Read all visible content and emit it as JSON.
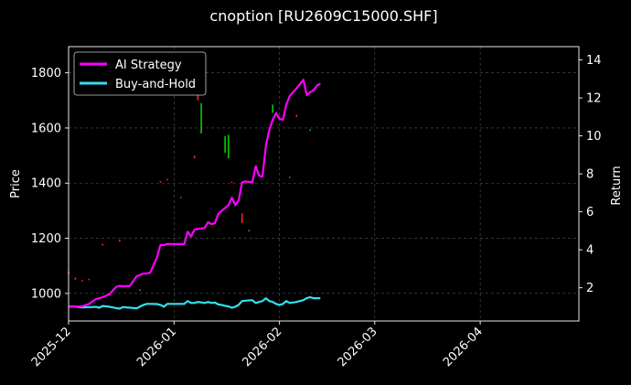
{
  "chart_data": {
    "type": "line",
    "title": "cnoption [RU2609C15000.SHF]",
    "left_axis": {
      "label": "Price",
      "ylim": [
        900,
        1895
      ],
      "ticks": [
        1000,
        1200,
        1400,
        1600,
        1800
      ]
    },
    "right_axis": {
      "label": "Return",
      "ylim": [
        0.25,
        14.7
      ],
      "ticks": [
        2,
        4,
        6,
        8,
        10,
        12,
        14
      ]
    },
    "x_axis": {
      "xlim": [
        "2025-12-01",
        "2026-04-30"
      ],
      "ticks": [
        "2025-12",
        "2026-01",
        "2026-02",
        "2026-03",
        "2026-04"
      ],
      "tick_dates": [
        "2025-12-01",
        "2026-01-01",
        "2026-02-01",
        "2026-03-01",
        "2026-04-01"
      ]
    },
    "grid": true,
    "legend_position": "top-left",
    "colors": {
      "ai": "#ff00ff",
      "bh": "#33e0f0",
      "up": "#00cc00",
      "down": "#ff2020",
      "background": "#000000",
      "grid": "#555555"
    },
    "series": [
      {
        "name": "AI Strategy",
        "axis": "right",
        "x": [
          "2025-12-01",
          "2025-12-03",
          "2025-12-05",
          "2025-12-07",
          "2025-12-09",
          "2025-12-10",
          "2025-12-11",
          "2025-12-13",
          "2025-12-15",
          "2025-12-16",
          "2025-12-17",
          "2025-12-19",
          "2025-12-21",
          "2025-12-23",
          "2025-12-24",
          "2025-12-25",
          "2025-12-27",
          "2025-12-28",
          "2025-12-29",
          "2025-12-30",
          "2025-12-31",
          "2026-01-01",
          "2026-01-04",
          "2026-01-05",
          "2026-01-06",
          "2026-01-07",
          "2026-01-08",
          "2026-01-10",
          "2026-01-11",
          "2026-01-12",
          "2026-01-13",
          "2026-01-14",
          "2026-01-15",
          "2026-01-16",
          "2026-01-17",
          "2026-01-18",
          "2026-01-19",
          "2026-01-20",
          "2026-01-21",
          "2026-01-22",
          "2026-01-24",
          "2026-01-25",
          "2026-01-26",
          "2026-01-27",
          "2026-01-28",
          "2026-01-29",
          "2026-01-30",
          "2026-01-31",
          "2026-02-01",
          "2026-02-02",
          "2026-02-03",
          "2026-02-04",
          "2026-02-06",
          "2026-02-08",
          "2026-02-09",
          "2026-02-10",
          "2026-02-11",
          "2026-02-12",
          "2026-02-13"
        ],
        "y": [
          1.0,
          1.0,
          1.02,
          1.15,
          1.4,
          1.45,
          1.5,
          1.65,
          2.05,
          2.1,
          2.08,
          2.1,
          2.6,
          2.75,
          2.75,
          2.8,
          3.6,
          4.25,
          4.25,
          4.3,
          4.3,
          4.3,
          4.3,
          4.95,
          4.7,
          5.05,
          5.1,
          5.15,
          5.45,
          5.35,
          5.4,
          5.9,
          6.05,
          6.2,
          6.35,
          6.75,
          6.35,
          6.6,
          7.55,
          7.6,
          7.55,
          8.4,
          7.9,
          7.85,
          9.5,
          10.3,
          10.85,
          11.2,
          10.9,
          10.85,
          11.65,
          12.1,
          12.5,
          12.95,
          12.15,
          12.3,
          12.4,
          12.65,
          12.75
        ]
      },
      {
        "name": "Buy-and-Hold",
        "axis": "right",
        "x": [
          "2025-12-01",
          "2025-12-03",
          "2025-12-05",
          "2025-12-07",
          "2025-12-09",
          "2025-12-10",
          "2025-12-11",
          "2025-12-13",
          "2025-12-15",
          "2025-12-16",
          "2025-12-17",
          "2025-12-19",
          "2025-12-21",
          "2025-12-23",
          "2025-12-24",
          "2025-12-25",
          "2025-12-27",
          "2025-12-28",
          "2025-12-29",
          "2025-12-30",
          "2025-12-31",
          "2026-01-01",
          "2026-01-04",
          "2026-01-05",
          "2026-01-06",
          "2026-01-07",
          "2026-01-08",
          "2026-01-10",
          "2026-01-11",
          "2026-01-12",
          "2026-01-13",
          "2026-01-14",
          "2026-01-15",
          "2026-01-16",
          "2026-01-17",
          "2026-01-18",
          "2026-01-19",
          "2026-01-20",
          "2026-01-21",
          "2026-01-22",
          "2026-01-24",
          "2026-01-25",
          "2026-01-26",
          "2026-01-27",
          "2026-01-28",
          "2026-01-29",
          "2026-01-30",
          "2026-01-31",
          "2026-02-01",
          "2026-02-02",
          "2026-02-03",
          "2026-02-04",
          "2026-02-06",
          "2026-02-08",
          "2026-02-09",
          "2026-02-10",
          "2026-02-11",
          "2026-02-12",
          "2026-02-13"
        ],
        "y": [
          1.0,
          1.0,
          0.97,
          0.98,
          0.99,
          0.95,
          1.04,
          1.0,
          0.93,
          0.9,
          0.98,
          0.95,
          0.92,
          1.1,
          1.15,
          1.15,
          1.14,
          1.1,
          1.0,
          1.15,
          1.15,
          1.15,
          1.15,
          1.3,
          1.2,
          1.2,
          1.25,
          1.2,
          1.25,
          1.2,
          1.22,
          1.12,
          1.1,
          1.05,
          1.02,
          0.95,
          1.0,
          1.1,
          1.3,
          1.32,
          1.35,
          1.2,
          1.25,
          1.3,
          1.45,
          1.3,
          1.25,
          1.15,
          1.1,
          1.15,
          1.3,
          1.2,
          1.25,
          1.35,
          1.45,
          1.5,
          1.45,
          1.45,
          1.45
        ]
      },
      {
        "name": "price-candles",
        "axis": "left",
        "candles": [
          {
            "date": "2025-12-01",
            "open": 1080,
            "close": 1070
          },
          {
            "date": "2025-12-03",
            "open": 1058,
            "close": 1050
          },
          {
            "date": "2025-12-05",
            "open": 1048,
            "close": 1044
          },
          {
            "date": "2025-12-07",
            "open": 1053,
            "close": 1049
          },
          {
            "date": "2025-12-11",
            "open": 1180,
            "close": 1174
          },
          {
            "date": "2025-12-16",
            "open": 1195,
            "close": 1188
          },
          {
            "date": "2025-12-22",
            "open": 1010,
            "close": 1015
          },
          {
            "date": "2025-12-26",
            "open": 1110,
            "close": 1105
          },
          {
            "date": "2025-12-28",
            "open": 1408,
            "close": 1402
          },
          {
            "date": "2025-12-30",
            "open": 1415,
            "close": 1410
          },
          {
            "date": "2026-01-03",
            "open": 1350,
            "close": 1345
          },
          {
            "date": "2026-01-07",
            "open": 1500,
            "close": 1490
          },
          {
            "date": "2026-01-08",
            "open": 1730,
            "close": 1700
          },
          {
            "date": "2026-01-09",
            "open": 1580,
            "close": 1690
          },
          {
            "date": "2026-01-16",
            "open": 1510,
            "close": 1570
          },
          {
            "date": "2026-01-17",
            "open": 1490,
            "close": 1575
          },
          {
            "date": "2026-01-18",
            "open": 1405,
            "close": 1400
          },
          {
            "date": "2026-01-21",
            "open": 1290,
            "close": 1255
          },
          {
            "date": "2026-01-23",
            "open": 1225,
            "close": 1230
          },
          {
            "date": "2026-01-30",
            "open": 1655,
            "close": 1685
          },
          {
            "date": "2026-02-04",
            "open": 1423,
            "close": 1418
          },
          {
            "date": "2026-02-06",
            "open": 1648,
            "close": 1640
          },
          {
            "date": "2026-02-10",
            "open": 1590,
            "close": 1595
          }
        ]
      }
    ]
  }
}
